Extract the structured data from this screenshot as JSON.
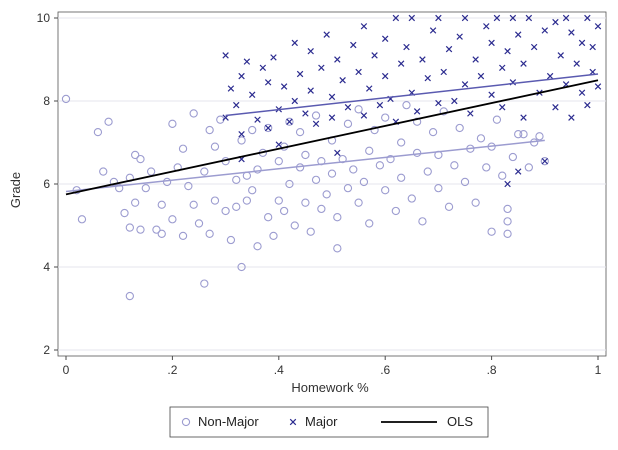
{
  "chart_data": {
    "type": "scatter",
    "title": "",
    "xlabel": "Homework %",
    "ylabel": "Grade",
    "xlim": [
      0,
      1
    ],
    "ylim": [
      2,
      10
    ],
    "xticks": [
      {
        "value": 0,
        "label": "0"
      },
      {
        "value": 0.2,
        "label": ".2"
      },
      {
        "value": 0.4,
        "label": ".4"
      },
      {
        "value": 0.6,
        "label": ".6"
      },
      {
        "value": 0.8,
        "label": ".8"
      },
      {
        "value": 1,
        "label": "1"
      }
    ],
    "yticks": [
      {
        "value": 2,
        "label": "2"
      },
      {
        "value": 4,
        "label": "4"
      },
      {
        "value": 6,
        "label": "6"
      },
      {
        "value": 8,
        "label": "8"
      },
      {
        "value": 10,
        "label": "10"
      }
    ],
    "grid": true,
    "legend": "bottom",
    "colors": {
      "nonmajor": "#9c9cd0",
      "major": "#2b2b8f",
      "ols": "#000000",
      "nonmajor_fit": "#9c9cd0",
      "major_fit": "#5a5ab0",
      "grid": "#e6e6ec",
      "axis": "#4a4a4a"
    },
    "series": [
      {
        "name": "Non-Major",
        "marker": "circle",
        "points": [
          [
            0.0,
            8.05
          ],
          [
            0.02,
            5.85
          ],
          [
            0.03,
            5.15
          ],
          [
            0.06,
            7.25
          ],
          [
            0.07,
            6.3
          ],
          [
            0.08,
            7.5
          ],
          [
            0.09,
            6.05
          ],
          [
            0.1,
            5.9
          ],
          [
            0.11,
            5.3
          ],
          [
            0.12,
            6.15
          ],
          [
            0.13,
            6.7
          ],
          [
            0.13,
            5.55
          ],
          [
            0.12,
            4.95
          ],
          [
            0.14,
            4.9
          ],
          [
            0.14,
            6.6
          ],
          [
            0.15,
            5.9
          ],
          [
            0.16,
            6.3
          ],
          [
            0.17,
            4.9
          ],
          [
            0.18,
            4.8
          ],
          [
            0.18,
            5.5
          ],
          [
            0.19,
            6.05
          ],
          [
            0.2,
            7.45
          ],
          [
            0.2,
            5.15
          ],
          [
            0.21,
            6.4
          ],
          [
            0.22,
            6.85
          ],
          [
            0.22,
            4.75
          ],
          [
            0.23,
            5.95
          ],
          [
            0.24,
            5.5
          ],
          [
            0.24,
            7.7
          ],
          [
            0.25,
            5.05
          ],
          [
            0.26,
            6.3
          ],
          [
            0.27,
            7.3
          ],
          [
            0.27,
            4.8
          ],
          [
            0.28,
            5.6
          ],
          [
            0.28,
            6.9
          ],
          [
            0.29,
            7.55
          ],
          [
            0.3,
            5.35
          ],
          [
            0.3,
            6.55
          ],
          [
            0.31,
            4.65
          ],
          [
            0.32,
            6.1
          ],
          [
            0.32,
            5.45
          ],
          [
            0.33,
            7.05
          ],
          [
            0.33,
            4.0
          ],
          [
            0.34,
            5.6
          ],
          [
            0.34,
            6.2
          ],
          [
            0.35,
            7.3
          ],
          [
            0.35,
            5.85
          ],
          [
            0.36,
            6.35
          ],
          [
            0.36,
            4.5
          ],
          [
            0.37,
            6.75
          ],
          [
            0.38,
            5.2
          ],
          [
            0.38,
            7.35
          ],
          [
            0.39,
            4.75
          ],
          [
            0.4,
            6.55
          ],
          [
            0.4,
            5.6
          ],
          [
            0.41,
            6.9
          ],
          [
            0.41,
            5.35
          ],
          [
            0.42,
            7.5
          ],
          [
            0.42,
            6.0
          ],
          [
            0.43,
            5.0
          ],
          [
            0.44,
            6.4
          ],
          [
            0.44,
            7.25
          ],
          [
            0.45,
            5.55
          ],
          [
            0.45,
            6.7
          ],
          [
            0.46,
            4.85
          ],
          [
            0.47,
            6.1
          ],
          [
            0.47,
            7.65
          ],
          [
            0.48,
            5.4
          ],
          [
            0.48,
            6.55
          ],
          [
            0.49,
            5.75
          ],
          [
            0.5,
            7.05
          ],
          [
            0.5,
            6.25
          ],
          [
            0.51,
            5.2
          ],
          [
            0.51,
            4.45
          ],
          [
            0.52,
            6.6
          ],
          [
            0.53,
            7.45
          ],
          [
            0.53,
            5.9
          ],
          [
            0.54,
            6.35
          ],
          [
            0.55,
            5.55
          ],
          [
            0.55,
            7.8
          ],
          [
            0.56,
            6.05
          ],
          [
            0.57,
            6.8
          ],
          [
            0.57,
            5.05
          ],
          [
            0.58,
            7.3
          ],
          [
            0.59,
            6.45
          ],
          [
            0.6,
            5.85
          ],
          [
            0.6,
            7.6
          ],
          [
            0.61,
            6.6
          ],
          [
            0.62,
            5.35
          ],
          [
            0.63,
            7.0
          ],
          [
            0.63,
            6.15
          ],
          [
            0.64,
            7.9
          ],
          [
            0.65,
            5.65
          ],
          [
            0.66,
            6.75
          ],
          [
            0.66,
            7.5
          ],
          [
            0.67,
            5.1
          ],
          [
            0.68,
            6.3
          ],
          [
            0.69,
            7.25
          ],
          [
            0.7,
            5.9
          ],
          [
            0.7,
            6.7
          ],
          [
            0.71,
            7.75
          ],
          [
            0.72,
            5.45
          ],
          [
            0.73,
            6.45
          ],
          [
            0.74,
            7.35
          ],
          [
            0.75,
            6.05
          ],
          [
            0.76,
            6.85
          ],
          [
            0.77,
            5.55
          ],
          [
            0.78,
            7.1
          ],
          [
            0.79,
            6.4
          ],
          [
            0.8,
            6.9
          ],
          [
            0.8,
            4.85
          ],
          [
            0.81,
            7.55
          ],
          [
            0.82,
            6.2
          ],
          [
            0.83,
            5.4
          ],
          [
            0.83,
            5.1
          ],
          [
            0.83,
            4.8
          ],
          [
            0.84,
            6.65
          ],
          [
            0.85,
            7.2
          ],
          [
            0.86,
            7.2
          ],
          [
            0.87,
            6.4
          ],
          [
            0.88,
            7.0
          ],
          [
            0.89,
            7.15
          ],
          [
            0.9,
            6.55
          ],
          [
            0.12,
            3.3
          ],
          [
            0.26,
            3.6
          ]
        ]
      },
      {
        "name": "Major",
        "marker": "x",
        "points": [
          [
            0.3,
            9.1
          ],
          [
            0.3,
            7.6
          ],
          [
            0.31,
            8.3
          ],
          [
            0.32,
            7.9
          ],
          [
            0.33,
            8.6
          ],
          [
            0.33,
            7.2
          ],
          [
            0.34,
            8.95
          ],
          [
            0.35,
            8.15
          ],
          [
            0.36,
            7.55
          ],
          [
            0.37,
            8.8
          ],
          [
            0.38,
            7.35
          ],
          [
            0.38,
            8.45
          ],
          [
            0.39,
            9.05
          ],
          [
            0.4,
            7.8
          ],
          [
            0.41,
            8.35
          ],
          [
            0.42,
            7.5
          ],
          [
            0.43,
            9.4
          ],
          [
            0.43,
            8.0
          ],
          [
            0.44,
            8.65
          ],
          [
            0.45,
            7.7
          ],
          [
            0.46,
            9.2
          ],
          [
            0.46,
            8.25
          ],
          [
            0.47,
            7.45
          ],
          [
            0.48,
            8.8
          ],
          [
            0.49,
            9.6
          ],
          [
            0.5,
            8.1
          ],
          [
            0.5,
            7.6
          ],
          [
            0.51,
            9.0
          ],
          [
            0.52,
            8.5
          ],
          [
            0.53,
            7.85
          ],
          [
            0.54,
            9.35
          ],
          [
            0.55,
            8.7
          ],
          [
            0.56,
            7.65
          ],
          [
            0.56,
            9.8
          ],
          [
            0.57,
            8.3
          ],
          [
            0.58,
            9.1
          ],
          [
            0.59,
            7.9
          ],
          [
            0.6,
            8.6
          ],
          [
            0.6,
            9.5
          ],
          [
            0.61,
            8.05
          ],
          [
            0.62,
            10.0
          ],
          [
            0.62,
            7.5
          ],
          [
            0.63,
            8.9
          ],
          [
            0.64,
            9.3
          ],
          [
            0.65,
            8.2
          ],
          [
            0.65,
            10.0
          ],
          [
            0.66,
            7.75
          ],
          [
            0.67,
            9.0
          ],
          [
            0.68,
            8.55
          ],
          [
            0.69,
            9.7
          ],
          [
            0.7,
            7.95
          ],
          [
            0.7,
            10.0
          ],
          [
            0.71,
            8.7
          ],
          [
            0.72,
            9.25
          ],
          [
            0.73,
            8.0
          ],
          [
            0.74,
            9.55
          ],
          [
            0.75,
            8.4
          ],
          [
            0.75,
            10.0
          ],
          [
            0.76,
            7.7
          ],
          [
            0.77,
            9.0
          ],
          [
            0.78,
            8.6
          ],
          [
            0.79,
            9.8
          ],
          [
            0.8,
            8.15
          ],
          [
            0.8,
            9.4
          ],
          [
            0.81,
            10.0
          ],
          [
            0.82,
            8.8
          ],
          [
            0.82,
            7.85
          ],
          [
            0.83,
            9.2
          ],
          [
            0.84,
            10.0
          ],
          [
            0.84,
            8.45
          ],
          [
            0.85,
            9.6
          ],
          [
            0.86,
            7.6
          ],
          [
            0.86,
            8.9
          ],
          [
            0.87,
            10.0
          ],
          [
            0.88,
            9.3
          ],
          [
            0.89,
            8.2
          ],
          [
            0.9,
            9.7
          ],
          [
            0.9,
            6.55
          ],
          [
            0.91,
            8.6
          ],
          [
            0.92,
            9.9
          ],
          [
            0.92,
            7.85
          ],
          [
            0.93,
            9.1
          ],
          [
            0.94,
            8.4
          ],
          [
            0.95,
            9.65
          ],
          [
            0.95,
            7.6
          ],
          [
            0.96,
            8.9
          ],
          [
            0.97,
            9.4
          ],
          [
            0.97,
            8.2
          ],
          [
            0.98,
            10.0
          ],
          [
            0.98,
            7.9
          ],
          [
            0.99,
            8.7
          ],
          [
            0.99,
            9.3
          ],
          [
            1.0,
            9.8
          ],
          [
            1.0,
            8.35
          ],
          [
            0.94,
            10.0
          ],
          [
            0.83,
            6.0
          ],
          [
            0.85,
            6.3
          ],
          [
            0.33,
            6.6
          ],
          [
            0.4,
            6.95
          ],
          [
            0.51,
            6.75
          ]
        ]
      },
      {
        "name": "Major fit",
        "type": "line",
        "x": [
          0.3,
          1.0
        ],
        "y": [
          7.65,
          8.65
        ]
      },
      {
        "name": "Non-Major fit",
        "type": "line",
        "x": [
          0.0,
          0.9
        ],
        "y": [
          5.82,
          7.05
        ]
      },
      {
        "name": "OLS",
        "type": "line",
        "x": [
          0.0,
          1.0
        ],
        "y": [
          5.75,
          8.5
        ]
      }
    ],
    "legend_entries": [
      {
        "label": "Non-Major",
        "marker": "circle"
      },
      {
        "label": "Major",
        "marker": "x"
      },
      {
        "label": "OLS",
        "marker": "line"
      }
    ]
  }
}
